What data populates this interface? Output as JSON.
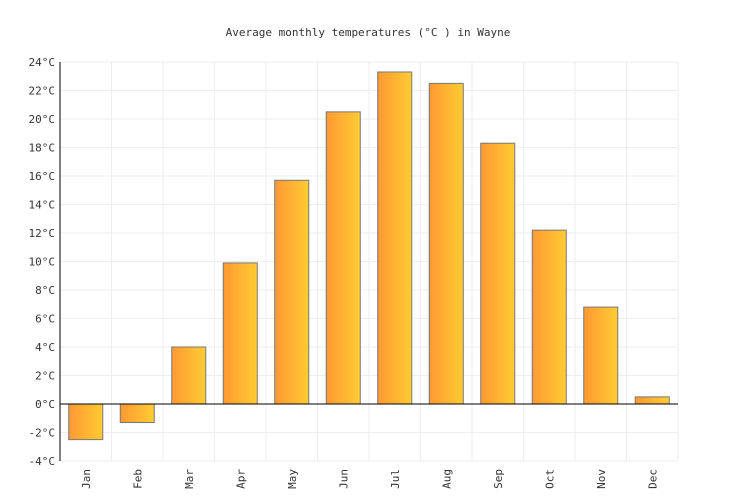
{
  "chart_data": {
    "type": "bar",
    "title": "Average monthly temperatures (°C ) in Wayne",
    "categories": [
      "Jan",
      "Feb",
      "Mar",
      "Apr",
      "May",
      "Jun",
      "Jul",
      "Aug",
      "Sep",
      "Oct",
      "Nov",
      "Dec"
    ],
    "values": [
      -2.5,
      -1.3,
      4.0,
      9.9,
      15.7,
      20.5,
      23.3,
      22.5,
      18.3,
      12.2,
      6.8,
      0.5
    ],
    "ylim": [
      -4,
      24
    ],
    "yticks": [
      -4,
      -2,
      0,
      2,
      4,
      6,
      8,
      10,
      12,
      14,
      16,
      18,
      20,
      22,
      24
    ],
    "y_unit": "°C",
    "grid": true,
    "colors": {
      "bar_start": "#ff9933",
      "bar_end": "#ffcc33",
      "bar_stroke": "#777777",
      "grid": "#eeeeee"
    }
  }
}
